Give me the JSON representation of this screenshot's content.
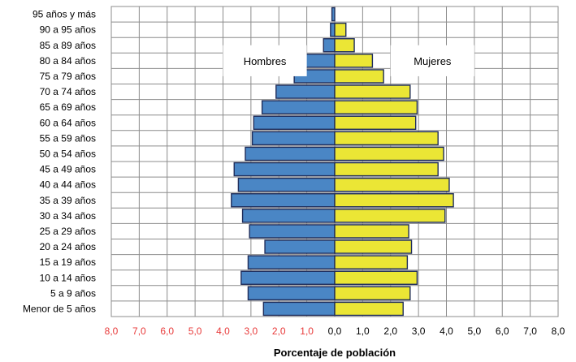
{
  "chart_data": {
    "type": "bar",
    "orientation": "horizontal",
    "layout": "population-pyramid",
    "categories": [
      "95 años y más",
      "90 a 95 años",
      "85 a 89 años",
      "80 a 84 años",
      "75 a 79 años",
      "70 a 74 años",
      "65 a 69 años",
      "60 a 64 años",
      "55 a 59 años",
      "50 a 54 años",
      "45 a 49 años",
      "40 a 44 años",
      "35 a 39 años",
      "30 a 34 años",
      "25 a 29 años",
      "20 a 24 años",
      "15 a 19 años",
      "10 a 14 años",
      "5 a 9 años",
      "Menor de 5 años"
    ],
    "series": [
      {
        "name": "Hombres",
        "side": "left",
        "color": "#4a86c5",
        "values": [
          0.1,
          0.15,
          0.4,
          1.1,
          1.45,
          2.1,
          2.6,
          2.9,
          2.95,
          3.2,
          3.6,
          3.45,
          3.7,
          3.3,
          3.05,
          2.5,
          3.1,
          3.35,
          3.1,
          2.55
        ]
      },
      {
        "name": "Mujeres",
        "side": "right",
        "color": "#ebe635",
        "values": [
          0.0,
          0.4,
          0.7,
          1.35,
          1.75,
          2.7,
          2.95,
          2.9,
          3.7,
          3.9,
          3.7,
          4.1,
          4.25,
          3.95,
          2.65,
          2.75,
          2.6,
          2.95,
          2.7,
          2.45
        ]
      }
    ],
    "x_ticks": [
      "8,0",
      "7,0",
      "6,0",
      "5,0",
      "4,0",
      "3,0",
      "2,0",
      "1,0",
      "0,0",
      "1,0",
      "2,0",
      "3,0",
      "4,0",
      "5,0",
      "6,0",
      "7,0",
      "8,0"
    ],
    "xlim": [
      -8,
      8
    ],
    "xlabel": "Porcentaje de población",
    "left_tick_color": "#e83a3a",
    "right_tick_color": "#000000",
    "grid": true,
    "legend": "inside-top-labels"
  }
}
